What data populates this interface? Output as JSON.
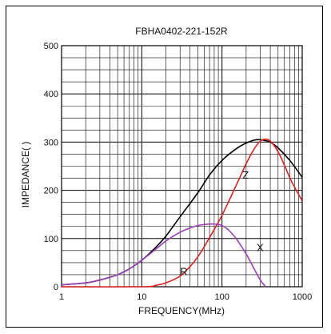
{
  "chart_data": {
    "type": "line",
    "title": "FBHA0402-221-152R",
    "xlabel": "FREQUENCY(MHz)",
    "ylabel": "IMPEDANCE(   )",
    "x_scale": "log",
    "xlim": [
      1,
      1000
    ],
    "ylim": [
      0,
      500
    ],
    "x_ticks": [
      1,
      10,
      100,
      1000
    ],
    "x_tick_labels": [
      "1",
      "10",
      "100",
      "1000"
    ],
    "y_ticks": [
      0,
      100,
      200,
      300,
      400,
      500
    ],
    "y_tick_labels": [
      "0",
      "100",
      "200",
      "300",
      "400",
      "500"
    ],
    "grid": true,
    "series": [
      {
        "name": "Z",
        "color": "#000000",
        "x": [
          1,
          2,
          3,
          5,
          7,
          10,
          15,
          20,
          30,
          50,
          70,
          100,
          150,
          200,
          250,
          300,
          350,
          400,
          500,
          700,
          1000
        ],
        "y": [
          4,
          8,
          14,
          25,
          37,
          55,
          82,
          105,
          145,
          195,
          232,
          262,
          286,
          298,
          304,
          305,
          303,
          300,
          288,
          262,
          227
        ]
      },
      {
        "name": "R",
        "color": "#e02020",
        "x": [
          1,
          10,
          15,
          20,
          30,
          40,
          50,
          70,
          100,
          150,
          200,
          250,
          300,
          350,
          400,
          500,
          600,
          700,
          800,
          1000
        ],
        "y": [
          0,
          0,
          3,
          8,
          22,
          42,
          62,
          102,
          148,
          210,
          255,
          285,
          302,
          306,
          302,
          280,
          252,
          226,
          207,
          178
        ]
      },
      {
        "name": "X",
        "color": "#9b3fb5",
        "x": [
          1,
          2,
          3,
          5,
          7,
          10,
          15,
          20,
          30,
          40,
          50,
          60,
          70,
          80,
          90,
          100,
          120,
          150,
          200,
          250,
          300,
          350
        ],
        "y": [
          4,
          8,
          14,
          25,
          37,
          55,
          78,
          95,
          113,
          122,
          127,
          129,
          130,
          130,
          129,
          127,
          118,
          100,
          68,
          38,
          14,
          0
        ]
      }
    ],
    "annotations": [
      {
        "text": "Z",
        "x": 180,
        "y": 224,
        "color": "#000000"
      },
      {
        "text": "R",
        "x": 30,
        "y": 24,
        "color": "#e02020"
      },
      {
        "text": "X",
        "x": 270,
        "y": 74,
        "color": "#9b3fb5"
      }
    ]
  }
}
